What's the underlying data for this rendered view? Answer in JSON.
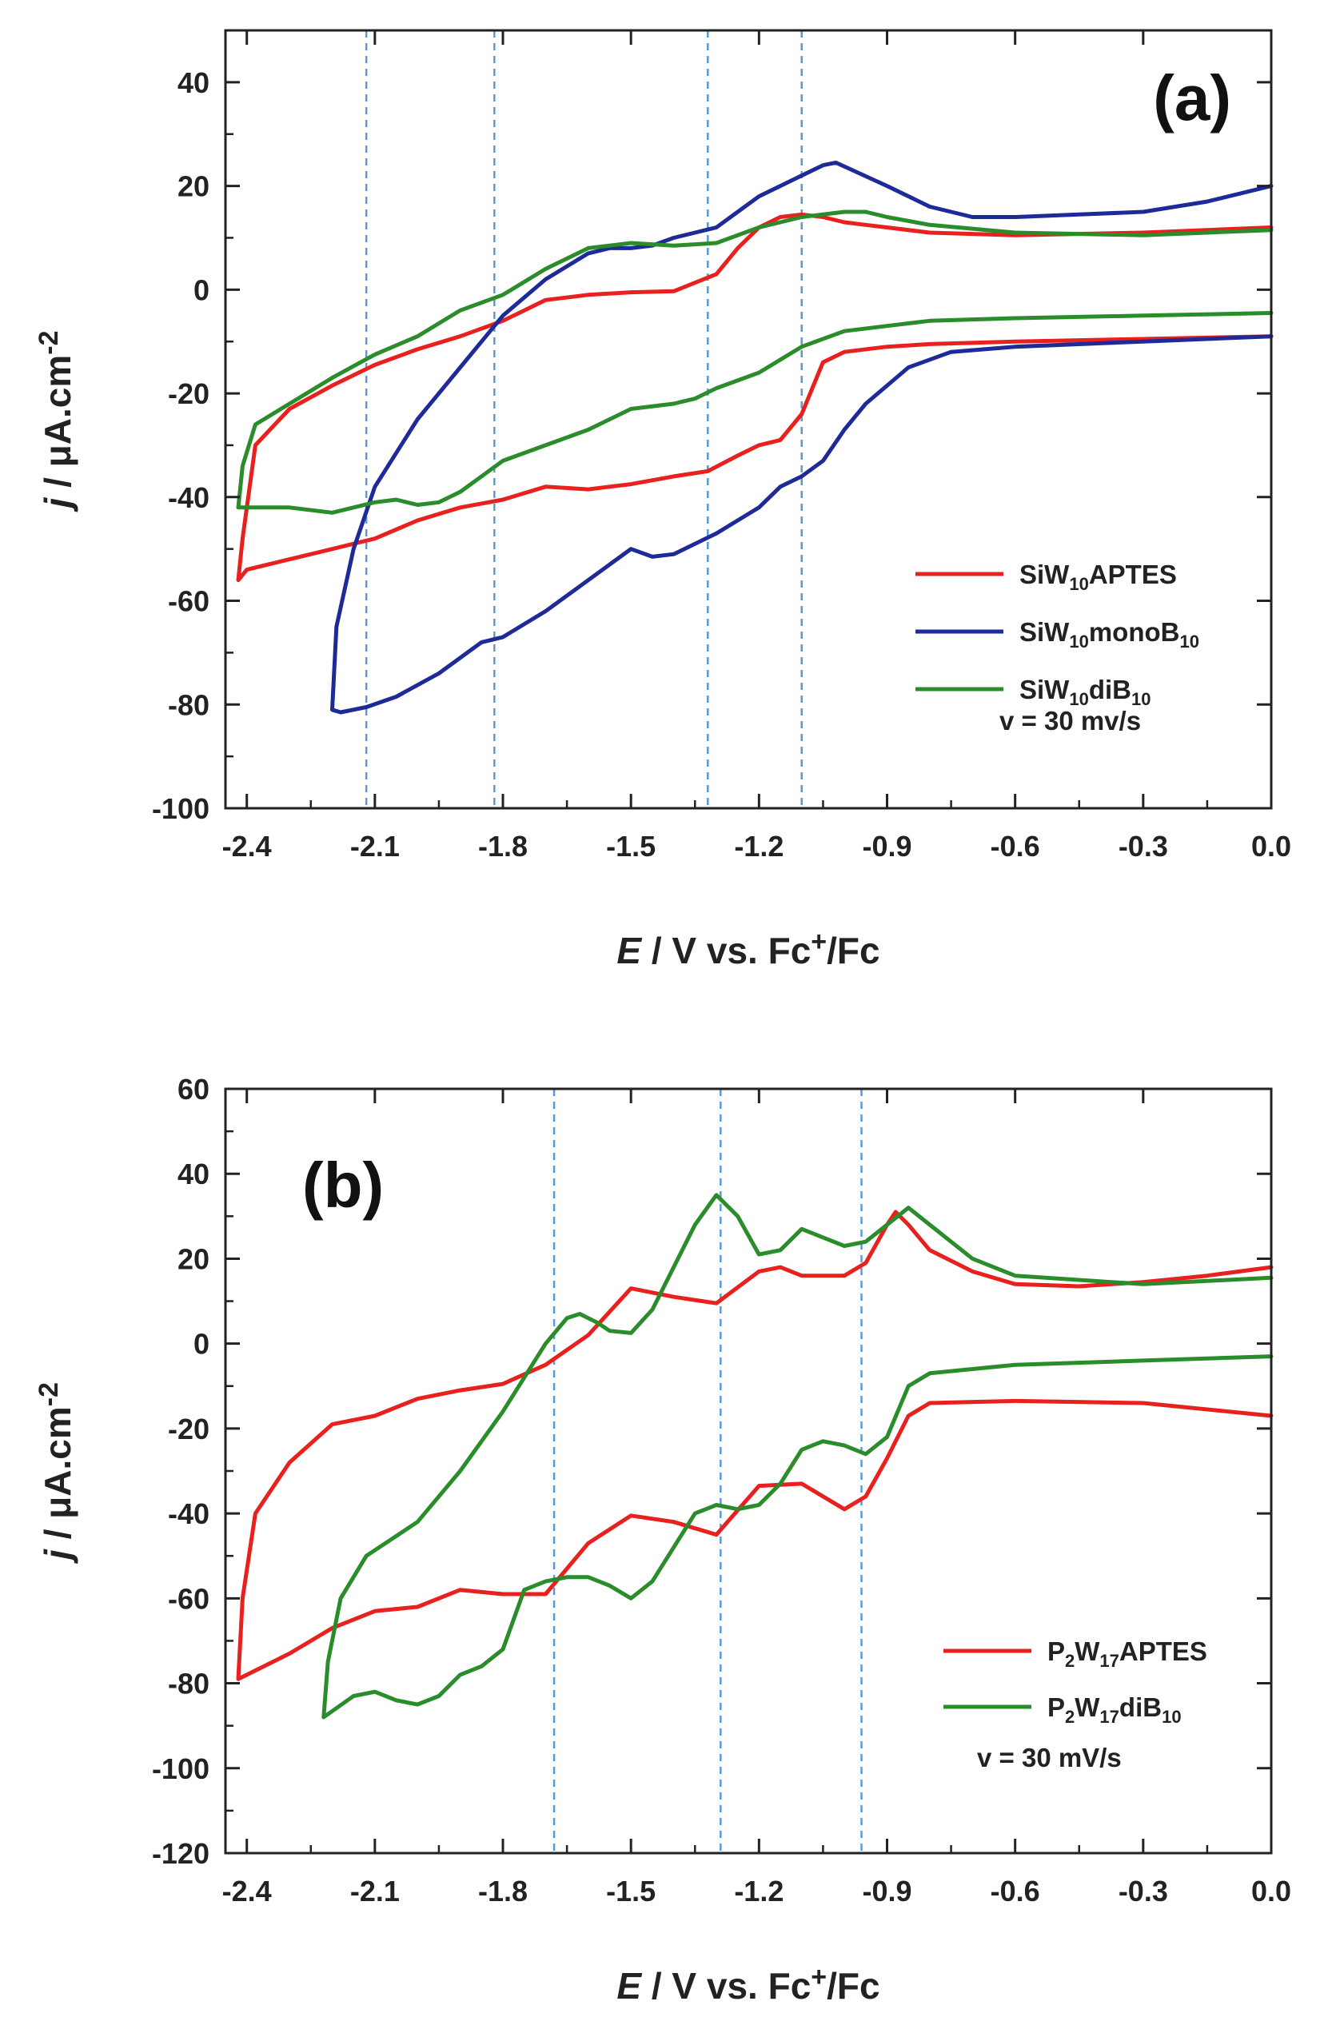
{
  "chart_data": [
    {
      "type": "line",
      "panel_label": "(a)",
      "xlabel_italic": "E",
      "xlabel_rest": " / V vs. Fc",
      "xlabel_sup": "+",
      "xlabel_tail": "/Fc",
      "ylabel_italic": "j",
      "ylabel_rest": " / μA.cm",
      "ylabel_sup": "-2",
      "xlim": [
        -2.45,
        0.0
      ],
      "ylim": [
        -100,
        50
      ],
      "xticks": [
        -2.4,
        -2.1,
        -1.8,
        -1.5,
        -1.2,
        -0.9,
        -0.6,
        -0.3,
        0.0
      ],
      "xtick_labels": [
        "-2.4",
        "-2.1",
        "-1.8",
        "-1.5",
        "-1.2",
        "-0.9",
        "-0.6",
        "-0.3",
        "0.0"
      ],
      "yticks": [
        -100,
        -80,
        -60,
        -40,
        -20,
        0,
        20,
        40
      ],
      "ytick_labels": [
        "-100",
        "-80",
        "-60",
        "-40",
        "-20",
        "0",
        "20",
        "40"
      ],
      "reference_lines_x": [
        -2.12,
        -1.82,
        -1.32,
        -1.1
      ],
      "scan_rate_label": "v = 30 mv/s",
      "legend_position": "lower-right",
      "series": [
        {
          "name_main": "SiW",
          "name_sub": "10",
          "name_tail": "APTES",
          "name_sub2": "",
          "color": "#e8201e",
          "x": [
            0.0,
            -0.3,
            -0.6,
            -0.8,
            -0.9,
            -1.0,
            -1.05,
            -1.1,
            -1.15,
            -1.2,
            -1.25,
            -1.32,
            -1.4,
            -1.5,
            -1.6,
            -1.7,
            -1.8,
            -1.9,
            -2.0,
            -2.1,
            -2.2,
            -2.3,
            -2.4,
            -2.42,
            -2.41,
            -2.38,
            -2.3,
            -2.2,
            -2.1,
            -2.0,
            -1.9,
            -1.8,
            -1.7,
            -1.6,
            -1.5,
            -1.4,
            -1.3,
            -1.25,
            -1.2,
            -1.15,
            -1.1,
            -1.05,
            -1.0,
            -0.95,
            -0.9,
            -0.8,
            -0.6,
            -0.3,
            0.0
          ],
          "y": [
            -9,
            -9.5,
            -10,
            -10.5,
            -11,
            -12,
            -14,
            -24,
            -29,
            -30,
            -32,
            -35,
            -36,
            -37.5,
            -38.5,
            -38,
            -40.5,
            -42,
            -44.5,
            -48,
            -50,
            -52,
            -54,
            -56,
            -48,
            -30,
            -23,
            -18.5,
            -14.5,
            -11.5,
            -9,
            -6,
            -2,
            -1,
            -0.5,
            -0.3,
            3,
            8,
            12,
            14,
            14.5,
            14,
            13,
            12.5,
            12,
            11,
            10.5,
            11,
            12
          ]
        },
        {
          "name_main": "SiW",
          "name_sub": "10",
          "name_tail": "monoB",
          "name_sub2": "10",
          "color": "#1f2a99",
          "x": [
            0.0,
            -0.3,
            -0.6,
            -0.75,
            -0.85,
            -0.95,
            -1.0,
            -1.05,
            -1.1,
            -1.15,
            -1.2,
            -1.3,
            -1.4,
            -1.45,
            -1.5,
            -1.6,
            -1.7,
            -1.8,
            -1.85,
            -1.95,
            -2.05,
            -2.12,
            -2.18,
            -2.2,
            -2.19,
            -2.15,
            -2.1,
            -2.0,
            -1.9,
            -1.8,
            -1.7,
            -1.6,
            -1.55,
            -1.5,
            -1.45,
            -1.4,
            -1.3,
            -1.2,
            -1.1,
            -1.05,
            -1.02,
            -0.98,
            -0.9,
            -0.8,
            -0.7,
            -0.6,
            -0.45,
            -0.3,
            -0.15,
            0.0
          ],
          "y": [
            -9,
            -10,
            -11,
            -12,
            -15,
            -22,
            -27,
            -33,
            -36,
            -38,
            -42,
            -47,
            -51,
            -51.5,
            -50,
            -56,
            -62,
            -67,
            -68,
            -74,
            -78.5,
            -80.5,
            -81.5,
            -81,
            -65,
            -50,
            -38,
            -25,
            -15,
            -5,
            2,
            7,
            8,
            8,
            8.5,
            10,
            12,
            18,
            22,
            24,
            24.5,
            23,
            20,
            16,
            14,
            14,
            14.5,
            15,
            17,
            20
          ]
        },
        {
          "name_main": "SiW",
          "name_sub": "10",
          "name_tail": "diB",
          "name_sub2": "10",
          "color": "#2a8c2a",
          "x": [
            0.0,
            -0.3,
            -0.6,
            -0.8,
            -0.9,
            -1.0,
            -1.1,
            -1.2,
            -1.3,
            -1.35,
            -1.4,
            -1.5,
            -1.6,
            -1.7,
            -1.8,
            -1.85,
            -1.9,
            -1.95,
            -2.0,
            -2.05,
            -2.1,
            -2.2,
            -2.3,
            -2.42,
            -2.41,
            -2.38,
            -2.3,
            -2.2,
            -2.1,
            -2.0,
            -1.9,
            -1.8,
            -1.7,
            -1.6,
            -1.5,
            -1.4,
            -1.3,
            -1.2,
            -1.1,
            -1.0,
            -0.95,
            -0.9,
            -0.8,
            -0.6,
            -0.3,
            0.0
          ],
          "y": [
            -4.5,
            -5,
            -5.5,
            -6,
            -7,
            -8,
            -11,
            -16,
            -19,
            -21,
            -22,
            -23,
            -27,
            -30,
            -33,
            -36,
            -39,
            -41,
            -41.5,
            -40.5,
            -41,
            -43,
            -42,
            -42,
            -34,
            -26,
            -22,
            -17,
            -12.5,
            -9,
            -4,
            -1,
            4,
            8,
            9,
            8.5,
            9,
            12,
            14,
            15,
            15,
            14,
            12.5,
            11,
            10.5,
            11.5
          ]
        }
      ]
    },
    {
      "type": "line",
      "panel_label": "(b)",
      "xlabel_italic": "E",
      "xlabel_rest": " / V vs. Fc",
      "xlabel_sup": "+",
      "xlabel_tail": "/Fc",
      "ylabel_italic": "j",
      "ylabel_rest": " / μA.cm",
      "ylabel_sup": "-2",
      "xlim": [
        -2.45,
        0.0
      ],
      "ylim": [
        -120,
        60
      ],
      "xticks": [
        -2.4,
        -2.1,
        -1.8,
        -1.5,
        -1.2,
        -0.9,
        -0.6,
        -0.3,
        0.0
      ],
      "xtick_labels": [
        "-2.4",
        "-2.1",
        "-1.8",
        "-1.5",
        "-1.2",
        "-0.9",
        "-0.6",
        "-0.3",
        "0.0"
      ],
      "yticks": [
        -120,
        -100,
        -80,
        -60,
        -40,
        -20,
        0,
        20,
        40,
        60
      ],
      "ytick_labels": [
        "-120",
        "-100",
        "-80",
        "-60",
        "-40",
        "-20",
        "0",
        "20",
        "40",
        "60"
      ],
      "reference_lines_x": [
        -1.68,
        -1.29,
        -0.96
      ],
      "scan_rate_label": "v = 30 mV/s",
      "legend_position": "lower-right",
      "series": [
        {
          "name_main": "P",
          "name_sub": "2",
          "name_tail": "W",
          "name_sub2": "17",
          "name_tail2": "APTES",
          "color": "#e8201e",
          "x": [
            0.0,
            -0.3,
            -0.6,
            -0.8,
            -0.85,
            -0.9,
            -0.95,
            -1.0,
            -1.1,
            -1.2,
            -1.3,
            -1.4,
            -1.5,
            -1.6,
            -1.7,
            -1.8,
            -1.9,
            -2.0,
            -2.1,
            -2.2,
            -2.3,
            -2.42,
            -2.41,
            -2.38,
            -2.3,
            -2.2,
            -2.1,
            -2.0,
            -1.9,
            -1.8,
            -1.7,
            -1.6,
            -1.5,
            -1.4,
            -1.3,
            -1.2,
            -1.15,
            -1.1,
            -1.0,
            -0.95,
            -0.9,
            -0.88,
            -0.85,
            -0.8,
            -0.7,
            -0.6,
            -0.45,
            -0.3,
            -0.15,
            0.0
          ],
          "y": [
            -17,
            -14,
            -13.5,
            -14,
            -17,
            -27,
            -36,
            -39,
            -33,
            -33.5,
            -45,
            -42,
            -40.5,
            -47,
            -59,
            -59,
            -58,
            -62,
            -63,
            -67,
            -73,
            -79,
            -60,
            -40,
            -28,
            -19,
            -17,
            -13,
            -11,
            -9.5,
            -5,
            2,
            13,
            11,
            9.5,
            17,
            18,
            16,
            16,
            19,
            28,
            31,
            28,
            22,
            17,
            14,
            13.5,
            14.5,
            16,
            18
          ]
        },
        {
          "name_main": "P",
          "name_sub": "2",
          "name_tail": "W",
          "name_sub2": "17",
          "name_tail2": "diB",
          "name_sub3": "10",
          "color": "#2a8c2a",
          "x": [
            0.0,
            -0.3,
            -0.6,
            -0.8,
            -0.85,
            -0.9,
            -0.95,
            -1.0,
            -1.05,
            -1.1,
            -1.15,
            -1.2,
            -1.25,
            -1.3,
            -1.35,
            -1.4,
            -1.45,
            -1.5,
            -1.55,
            -1.6,
            -1.65,
            -1.7,
            -1.75,
            -1.8,
            -1.85,
            -1.9,
            -1.95,
            -2.0,
            -2.05,
            -2.1,
            -2.15,
            -2.22,
            -2.21,
            -2.18,
            -2.12,
            -2.0,
            -1.9,
            -1.8,
            -1.7,
            -1.65,
            -1.62,
            -1.58,
            -1.55,
            -1.5,
            -1.45,
            -1.4,
            -1.35,
            -1.3,
            -1.25,
            -1.2,
            -1.15,
            -1.1,
            -1.05,
            -1.0,
            -0.95,
            -0.9,
            -0.85,
            -0.8,
            -0.7,
            -0.6,
            -0.3,
            0.0
          ],
          "y": [
            -3,
            -4,
            -5,
            -7,
            -10,
            -22,
            -26,
            -24,
            -23,
            -25,
            -33,
            -38,
            -39,
            -38,
            -40,
            -48,
            -56,
            -60,
            -57,
            -55,
            -55,
            -56,
            -58,
            -72,
            -76,
            -78,
            -83,
            -85,
            -84,
            -82,
            -83,
            -88,
            -75,
            -60,
            -50,
            -42,
            -30,
            -16,
            0,
            6,
            7,
            5,
            3,
            2.5,
            8,
            18,
            28,
            35,
            30,
            21,
            22,
            27,
            25,
            23,
            24,
            28,
            32,
            28,
            20,
            16,
            14,
            15.5
          ]
        }
      ]
    }
  ]
}
